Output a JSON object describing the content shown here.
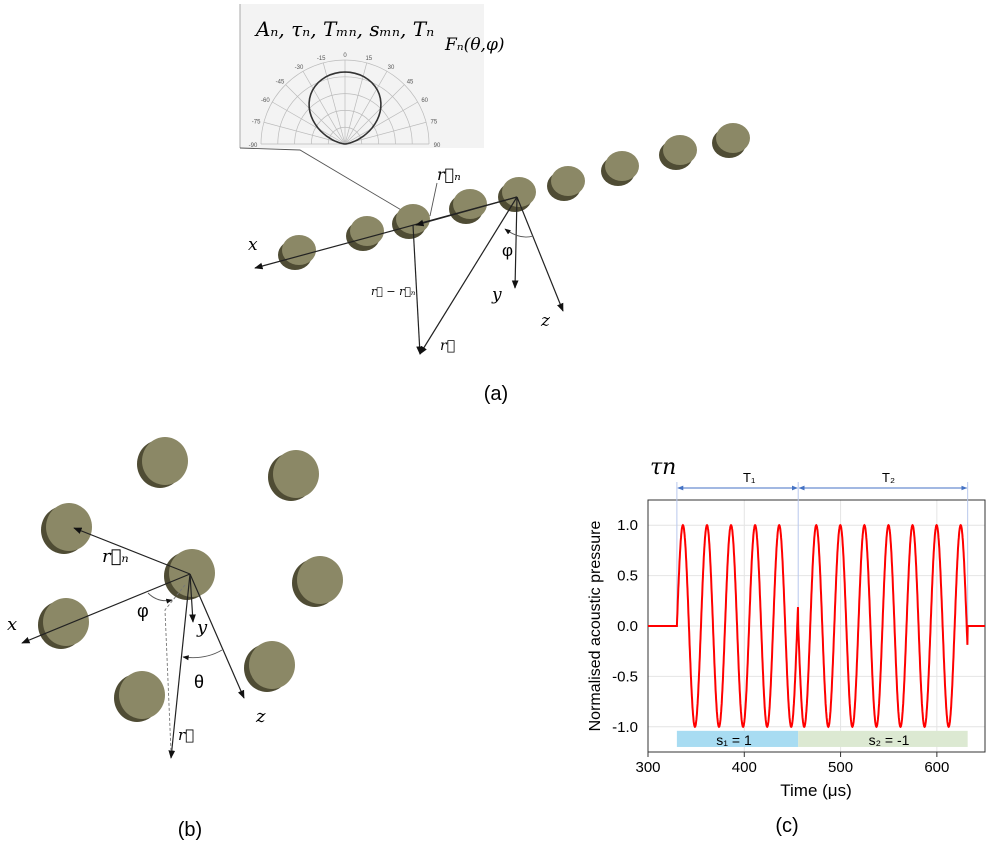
{
  "panel_a": {
    "caption": "(a)",
    "inset_title": "Aₙ, τₙ, Tₘₙ, sₘₙ, Tₙ",
    "inset_pattern_label": "Fₙ(θ,φ)",
    "polar_ticks": [
      "-90",
      "-75",
      "-60",
      "-45",
      "-30",
      "-15",
      "0",
      "15",
      "30",
      "45",
      "60",
      "75",
      "90"
    ],
    "labels": {
      "x": "x",
      "y": "y",
      "z": "z",
      "phi": "φ",
      "rn": "r⃗ₙ",
      "r": "r⃗",
      "r_minus_rn": "r⃗ − r⃗ₙ"
    }
  },
  "panel_b": {
    "caption": "(b)",
    "labels": {
      "x": "x",
      "y": "y",
      "z": "z",
      "phi": "φ",
      "theta": "θ",
      "rn": "r⃗ₙ",
      "r": "r⃗"
    }
  },
  "panel_c": {
    "caption": "(c)"
  },
  "colors": {
    "disc_face": "#8b8866",
    "disc_side": "#4f4c34",
    "signal": "#ff0000",
    "s1_band": "#a8dcf2",
    "s2_band": "#dce9d2",
    "marker": "#4472c4"
  },
  "chart_data": {
    "type": "line",
    "title": "",
    "xlabel": "Time (μs)",
    "ylabel": "Normalised acoustic pressure",
    "xlim": [
      300,
      650
    ],
    "ylim": [
      -1.25,
      1.25
    ],
    "xticks": [
      "300",
      "400",
      "500",
      "600"
    ],
    "xtick_values": [
      300,
      400,
      500,
      600
    ],
    "yticks": [
      "1.0",
      "0.5",
      "0.0",
      "-0.5",
      "-1.0"
    ],
    "ytick_values": [
      1.0,
      0.5,
      0.0,
      -0.5,
      -1.0
    ],
    "grid": true,
    "series": [
      {
        "name": "signal",
        "description_values": {
          "onset_us": 330,
          "switch_us": 456,
          "end_us": 632,
          "period_us": 25,
          "amplitude": 1.0,
          "cycles_T1": 5,
          "cycles_T2": 7
        }
      }
    ],
    "annotations": {
      "tau_label": "τn",
      "T1_label": "T₁",
      "T2_label": "T₂",
      "s1_label": "s₁ = 1",
      "s2_label": "s₂ = -1",
      "markers_us": [
        330,
        456,
        632
      ]
    }
  }
}
